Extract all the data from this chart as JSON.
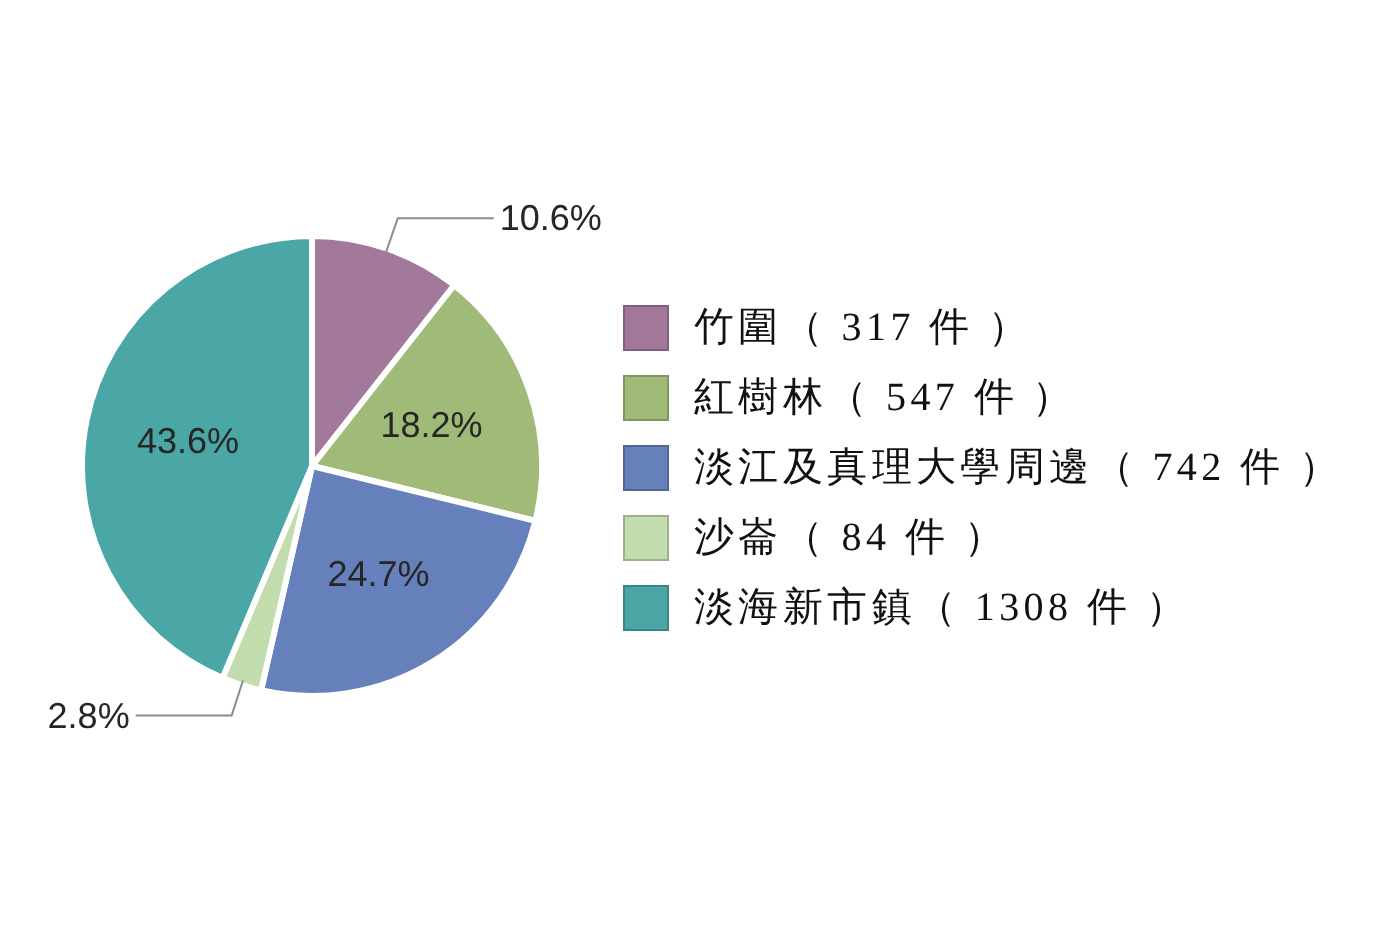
{
  "chart_data": {
    "type": "pie",
    "categories": [
      "竹圍（ 317 件 ）",
      "紅樹林（ 547 件 ）",
      "淡江及真理大學周邊（ 742 件 ）",
      "沙崙（ 84 件 ）",
      "淡海新市鎮（ 1308 件 ）"
    ],
    "values": [
      10.6,
      18.2,
      24.7,
      2.8,
      43.6
    ],
    "colors": [
      "#a2789b",
      "#a0ba78",
      "#6680bb",
      "#c3dcad",
      "#4ba6a6"
    ],
    "value_labels": [
      "10.6%",
      "18.2%",
      "24.7%",
      "2.8%",
      "43.6%"
    ],
    "legend": "right"
  }
}
